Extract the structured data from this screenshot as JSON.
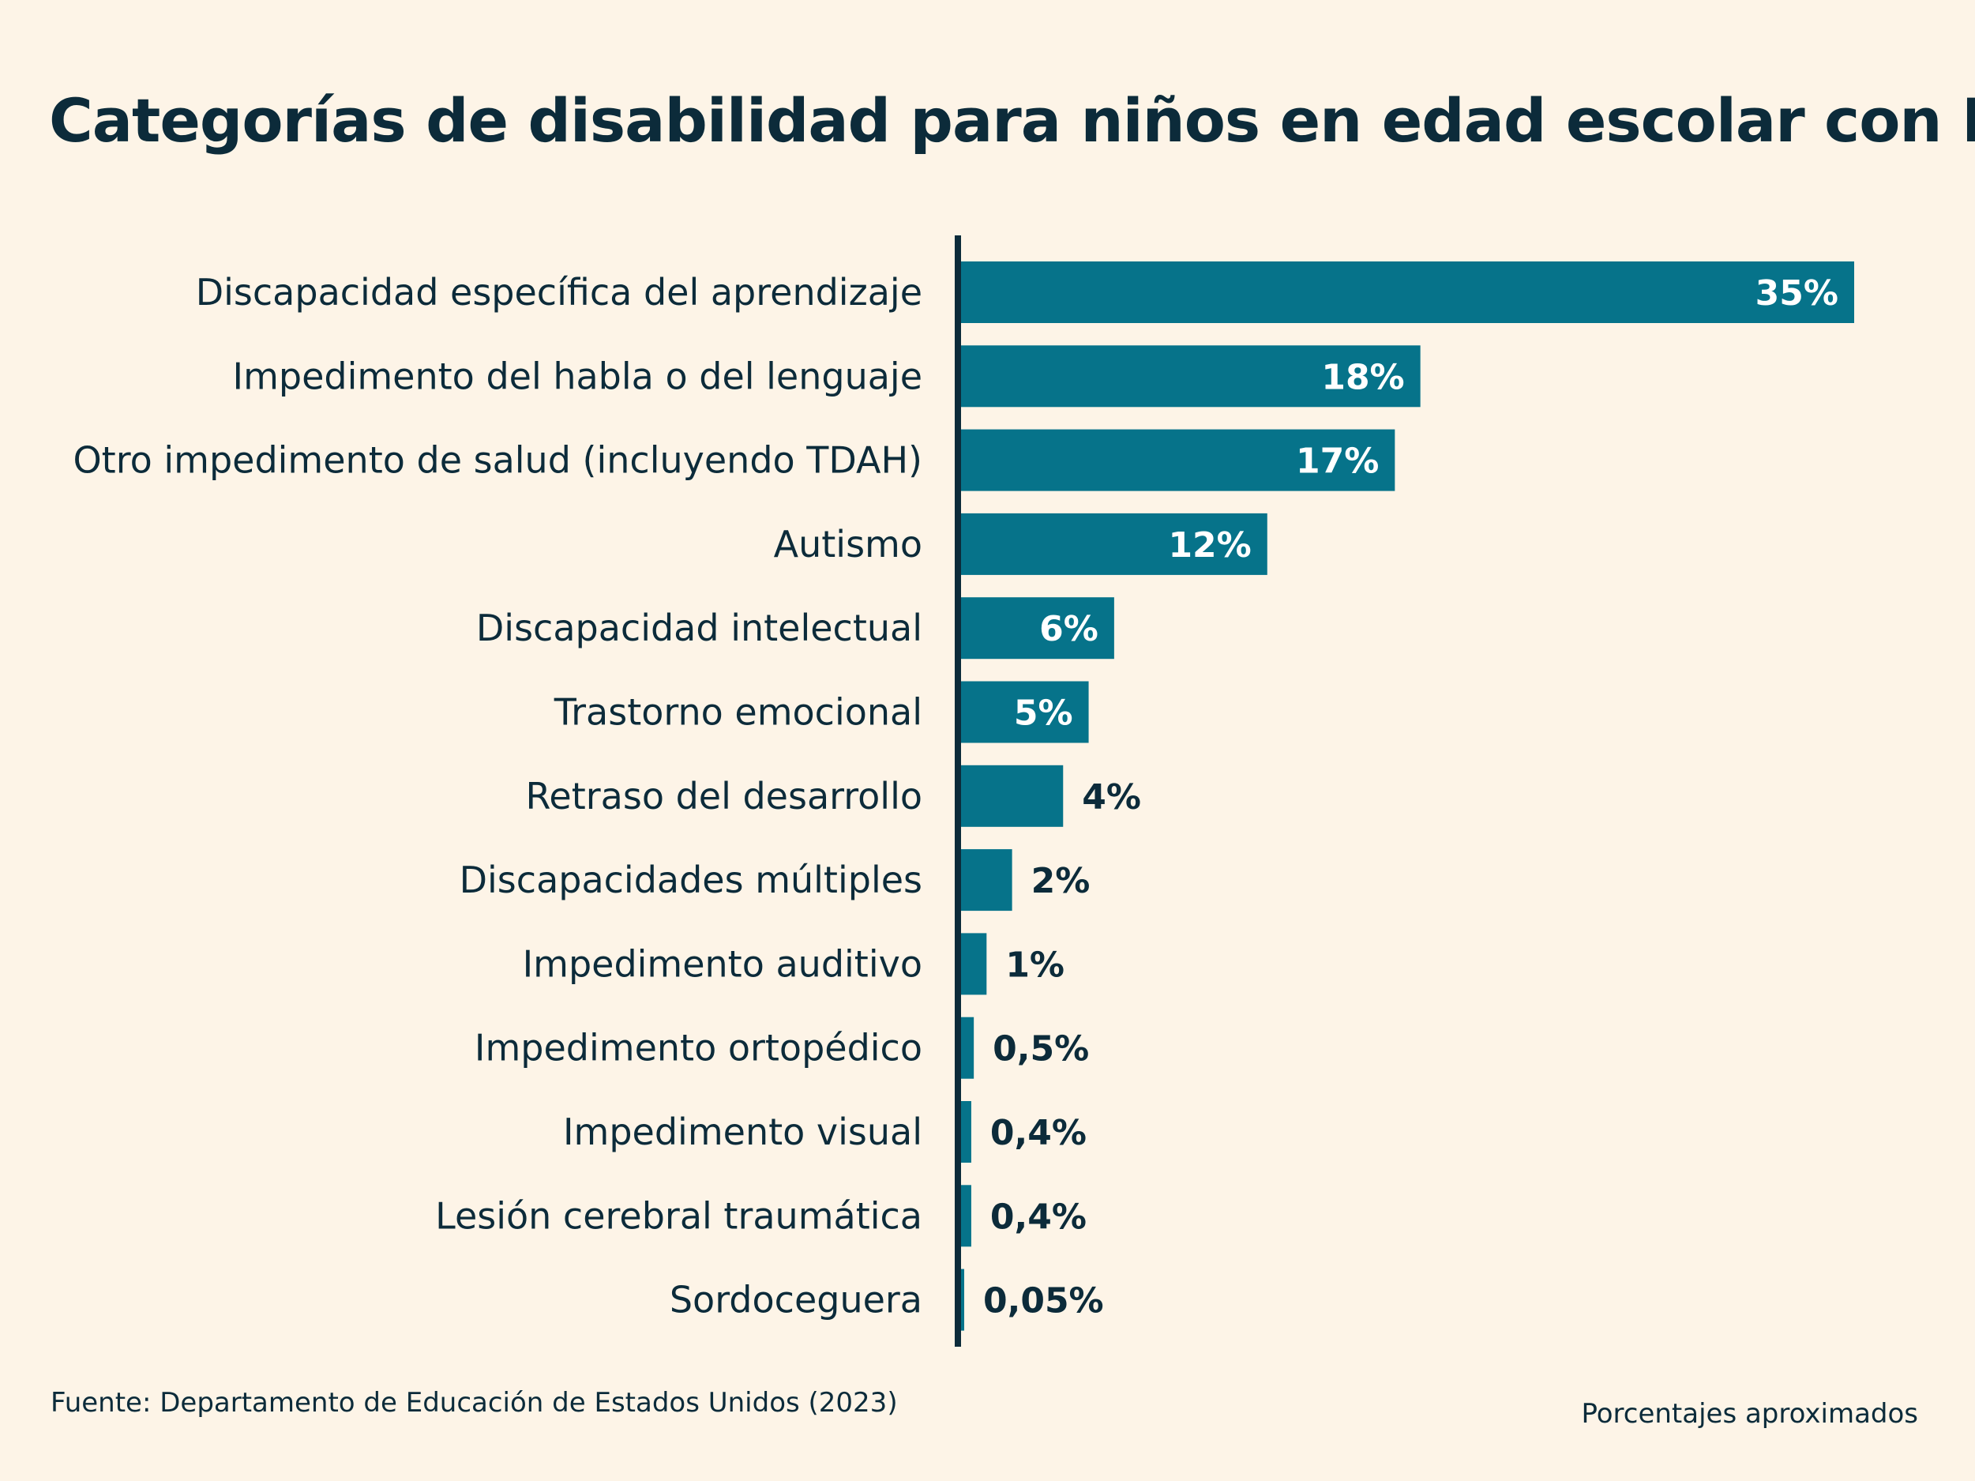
{
  "title": "Categorías de disabilidad para niños en edad escolar con IEP",
  "source": "Fuente: Departamento de Educación de Estados Unidos (2023)",
  "note": "Porcentajes aproximados",
  "colors": {
    "bar": "#06738a",
    "background": "#fdf4e7",
    "text": "#0c2b3a",
    "axis": "#0c2b3a"
  },
  "chart_data": {
    "type": "bar",
    "orientation": "horizontal",
    "categories": [
      "Discapacidad específica del aprendizaje",
      "Impedimento del habla o del lenguaje",
      "Otro impedimento de salud (incluyendo TDAH)",
      "Autismo",
      "Discapacidad intelectual",
      "Trastorno emocional",
      "Retraso del desarrollo",
      "Discapacidades múltiples",
      "Impedimento auditivo",
      "Impedimento ortopédico",
      "Impedimento visual",
      "Lesión cerebral traumática",
      "Sordoceguera"
    ],
    "values": [
      35,
      18,
      17,
      12,
      6,
      5,
      4,
      2,
      1,
      0.5,
      0.4,
      0.4,
      0.05
    ],
    "value_labels": [
      "35%",
      "18%",
      "17%",
      "12%",
      "6%",
      "5%",
      "4%",
      "2%",
      "1%",
      "0,5%",
      "0,4%",
      "0,4%",
      "0,05%"
    ],
    "xlim": [
      0,
      35
    ],
    "grid": false,
    "legend": "none",
    "title": "Categorías de disabilidad para niños en edad escolar con IEP"
  }
}
